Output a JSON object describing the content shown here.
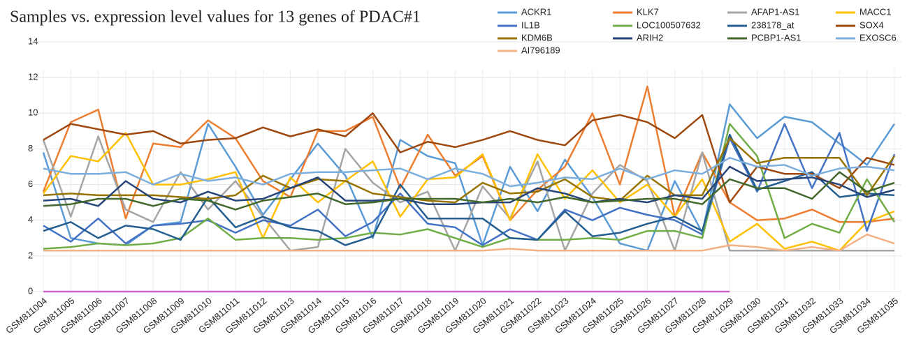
{
  "chart_data": {
    "type": "line",
    "title": "Samples vs. expression level values for 13 genes of PDAC#1",
    "categories": [
      "GSM811004",
      "GSM811005",
      "GSM811006",
      "GSM811007",
      "GSM811008",
      "GSM811009",
      "GSM811010",
      "GSM811011",
      "GSM811012",
      "GSM811013",
      "GSM811014",
      "GSM811015",
      "GSM811016",
      "GSM811017",
      "GSM811018",
      "GSM811019",
      "GSM811020",
      "GSM811021",
      "GSM811022",
      "GSM811023",
      "GSM811024",
      "GSM811025",
      "GSM811026",
      "GSM811027",
      "GSM811028",
      "GSM811029",
      "GSM811030",
      "GSM811031",
      "GSM811032",
      "GSM811033",
      "GSM811034",
      "GSM811035"
    ],
    "ylim": [
      0,
      14
    ],
    "yticks": [
      0,
      2,
      4,
      6,
      8,
      10,
      12,
      14
    ],
    "grid": true,
    "legend": "top-right",
    "series": [
      {
        "name": "ACKR1",
        "color": "#5b9bd5",
        "values": [
          7.8,
          3.0,
          2.7,
          2.6,
          3.7,
          3.9,
          9.4,
          7.0,
          4.3,
          6.3,
          8.3,
          6.5,
          3.0,
          8.5,
          7.6,
          7.2,
          2.6,
          7.0,
          4.5,
          7.4,
          5.3,
          2.7,
          2.3,
          6.2,
          3.3,
          10.5,
          8.6,
          9.8,
          9.5,
          8.3,
          7.1,
          9.4
        ]
      },
      {
        "name": "KLK7",
        "color": "#ed7d31",
        "values": [
          5.6,
          9.5,
          10.2,
          4.1,
          8.3,
          8.1,
          9.6,
          8.6,
          6.2,
          5.3,
          9.0,
          9.0,
          9.8,
          5.8,
          8.8,
          6.5,
          7.6,
          4.0,
          5.7,
          7.0,
          10.0,
          6.0,
          11.5,
          4.2,
          7.8,
          5.0,
          4.0,
          4.1,
          4.6,
          3.9,
          3.9,
          4.1
        ]
      },
      {
        "name": "AFAP1-AS1",
        "color": "#a5a5a5",
        "values": [
          8.5,
          4.2,
          8.7,
          4.6,
          3.9,
          6.7,
          4.6,
          6.2,
          4.2,
          2.3,
          2.5,
          8.0,
          6.1,
          5.0,
          5.6,
          2.3,
          5.9,
          4.1,
          7.3,
          2.3,
          5.5,
          7.1,
          6.2,
          2.3,
          7.8,
          2.3,
          2.3,
          2.3,
          2.3,
          2.3,
          2.3,
          2.3
        ]
      },
      {
        "name": "MACC1",
        "color": "#ffc000",
        "values": [
          5.5,
          7.6,
          7.3,
          8.9,
          6.0,
          6.0,
          6.3,
          6.7,
          3.0,
          6.4,
          5.0,
          6.2,
          7.3,
          4.2,
          6.3,
          6.4,
          7.7,
          4.0,
          7.7,
          5.2,
          6.8,
          5.0,
          6.0,
          4.2,
          6.3,
          2.8,
          3.8,
          2.4,
          2.8,
          2.3,
          3.9,
          4.5
        ]
      },
      {
        "name": "IL1B",
        "color": "#4472c4",
        "values": [
          3.7,
          2.8,
          4.1,
          2.7,
          3.7,
          3.8,
          4.0,
          3.3,
          4.0,
          3.7,
          4.6,
          3.1,
          3.9,
          5.5,
          3.8,
          3.6,
          2.6,
          3.5,
          2.9,
          4.6,
          4.0,
          4.7,
          4.3,
          4.0,
          3.2,
          8.6,
          5.6,
          9.4,
          5.8,
          8.9,
          3.4,
          7.7
        ]
      },
      {
        "name": "LOC100507632",
        "color": "#70ad47",
        "values": [
          2.4,
          2.5,
          2.7,
          2.6,
          2.7,
          3.0,
          4.1,
          2.9,
          3.0,
          3.0,
          2.9,
          3.0,
          3.3,
          3.2,
          3.5,
          3.0,
          2.5,
          3.0,
          2.9,
          2.9,
          3.0,
          2.9,
          3.4,
          3.4,
          3.0,
          9.4,
          7.6,
          3.0,
          3.8,
          3.3,
          6.3,
          3.9
        ]
      },
      {
        "name": "238178_at",
        "color": "#255e91",
        "values": [
          3.4,
          3.9,
          3.0,
          3.7,
          3.5,
          2.9,
          5.3,
          3.6,
          4.2,
          3.6,
          3.4,
          2.6,
          3.1,
          6.0,
          4.1,
          4.1,
          4.1,
          3.0,
          2.9,
          4.5,
          3.1,
          3.3,
          3.8,
          4.2,
          3.4,
          8.8,
          5.7,
          6.2,
          6.7,
          5.3,
          5.5,
          5.4
        ]
      },
      {
        "name": "SOX4",
        "color": "#9e480e",
        "values": [
          8.5,
          9.4,
          9.1,
          8.8,
          9.0,
          8.3,
          8.5,
          8.6,
          9.2,
          8.7,
          9.1,
          8.7,
          10.0,
          7.8,
          8.4,
          8.1,
          8.5,
          9.0,
          8.5,
          8.2,
          9.6,
          9.9,
          9.5,
          8.6,
          9.9,
          5.0,
          7.0,
          6.6,
          6.6,
          5.8,
          7.5,
          7.1
        ]
      },
      {
        "name": "KDM6B",
        "color": "#997300",
        "values": [
          5.4,
          5.5,
          5.4,
          5.4,
          5.4,
          5.3,
          5.2,
          5.4,
          6.5,
          5.8,
          6.3,
          6.2,
          5.5,
          5.3,
          5.1,
          5.0,
          6.1,
          5.5,
          5.6,
          6.3,
          5.3,
          5.1,
          6.5,
          5.4,
          5.4,
          8.6,
          7.2,
          7.5,
          7.5,
          7.5,
          5.4,
          7.6
        ]
      },
      {
        "name": "ARIH2",
        "color": "#264478",
        "values": [
          5.1,
          5.2,
          4.8,
          6.2,
          5.2,
          5.0,
          5.6,
          5.1,
          5.2,
          5.8,
          6.4,
          5.1,
          5.1,
          5.2,
          4.9,
          4.9,
          5.0,
          5.0,
          5.8,
          5.5,
          5.0,
          5.2,
          5.0,
          5.4,
          5.2,
          7.0,
          6.2,
          6.3,
          6.4,
          6.0,
          5.3,
          5.7
        ]
      },
      {
        "name": "PCBP1-AS1",
        "color": "#43682b",
        "values": [
          4.8,
          4.9,
          5.2,
          5.2,
          4.8,
          5.2,
          5.1,
          4.6,
          5.1,
          5.3,
          5.5,
          4.9,
          5.0,
          5.2,
          5.2,
          5.2,
          5.0,
          5.2,
          5.0,
          5.3,
          5.0,
          5.1,
          5.2,
          5.2,
          4.9,
          6.3,
          5.8,
          5.8,
          5.2,
          6.7,
          5.6,
          6.1
        ]
      },
      {
        "name": "EXOSC6",
        "color": "#7cafdd",
        "values": [
          6.9,
          6.6,
          6.6,
          6.7,
          6.0,
          6.6,
          6.2,
          6.4,
          6.0,
          6.6,
          6.7,
          6.7,
          6.8,
          6.9,
          6.3,
          6.9,
          6.6,
          5.9,
          6.1,
          6.4,
          6.3,
          6.9,
          6.3,
          6.8,
          6.6,
          7.5,
          7.0,
          7.1,
          6.5,
          6.9,
          7.0,
          6.8
        ]
      },
      {
        "name": "AI796189",
        "color": "#f4b183",
        "values": [
          2.3,
          2.3,
          2.3,
          2.3,
          2.3,
          2.3,
          2.3,
          2.3,
          2.3,
          2.3,
          2.3,
          2.3,
          2.3,
          2.3,
          2.3,
          2.3,
          2.3,
          2.4,
          2.3,
          2.3,
          2.3,
          2.3,
          2.3,
          2.3,
          2.3,
          2.6,
          2.5,
          2.3,
          2.5,
          2.3,
          3.2,
          2.7
        ]
      },
      {
        "color": "#cc66cc",
        "values": [
          0,
          0,
          0,
          0,
          0,
          0,
          0,
          0,
          0,
          0,
          0,
          0,
          0,
          0,
          0,
          0,
          0,
          0,
          0,
          0,
          0,
          0,
          0,
          0,
          0,
          0,
          null,
          null,
          null,
          null,
          null,
          null
        ]
      }
    ]
  }
}
